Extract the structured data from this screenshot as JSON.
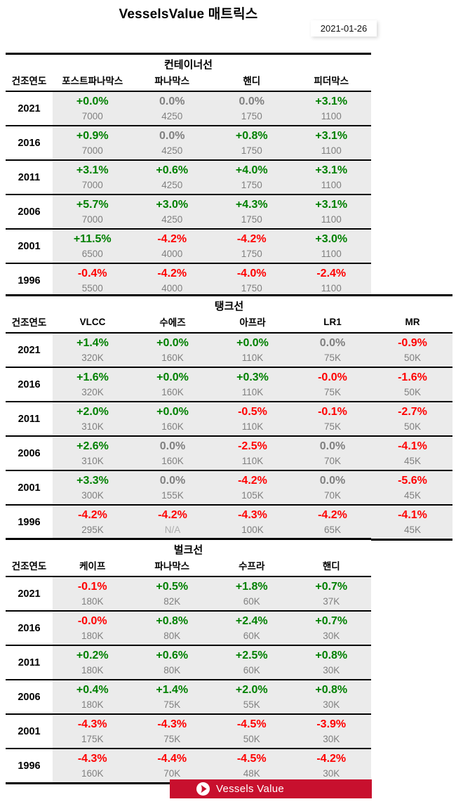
{
  "page": {
    "title": "VesselsValue 매트릭스",
    "date": "2021-01-26"
  },
  "colors": {
    "positive": "#008000",
    "negative": "#FF0000",
    "neutral": "#808080",
    "na": "#ADADAD",
    "cell_background": "#EBEBEB",
    "banner_red": "#C8102E"
  },
  "tables": [
    {
      "title": "컨테이너선",
      "year_header": "건조연도",
      "columns": [
        "포스트파나막스",
        "파나막스",
        "핸디",
        "피더막스"
      ],
      "rows": [
        {
          "year": "2021",
          "cells": [
            {
              "pct": "+0.0%",
              "value": "7000",
              "dir": "up"
            },
            {
              "pct": "0.0%",
              "value": "4250",
              "dir": "flat"
            },
            {
              "pct": "0.0%",
              "value": "1750",
              "dir": "flat"
            },
            {
              "pct": "+3.1%",
              "value": "1100",
              "dir": "up"
            }
          ]
        },
        {
          "year": "2016",
          "cells": [
            {
              "pct": "+0.9%",
              "value": "7000",
              "dir": "up"
            },
            {
              "pct": "0.0%",
              "value": "4250",
              "dir": "flat"
            },
            {
              "pct": "+0.8%",
              "value": "1750",
              "dir": "up"
            },
            {
              "pct": "+3.1%",
              "value": "1100",
              "dir": "up"
            }
          ]
        },
        {
          "year": "2011",
          "cells": [
            {
              "pct": "+3.1%",
              "value": "7000",
              "dir": "up"
            },
            {
              "pct": "+0.6%",
              "value": "4250",
              "dir": "up"
            },
            {
              "pct": "+4.0%",
              "value": "1750",
              "dir": "up"
            },
            {
              "pct": "+3.1%",
              "value": "1100",
              "dir": "up"
            }
          ]
        },
        {
          "year": "2006",
          "cells": [
            {
              "pct": "+5.7%",
              "value": "7000",
              "dir": "up"
            },
            {
              "pct": "+3.0%",
              "value": "4250",
              "dir": "up"
            },
            {
              "pct": "+4.3%",
              "value": "1750",
              "dir": "up"
            },
            {
              "pct": "+3.1%",
              "value": "1100",
              "dir": "up"
            }
          ]
        },
        {
          "year": "2001",
          "cells": [
            {
              "pct": "+11.5%",
              "value": "6500",
              "dir": "up"
            },
            {
              "pct": "-4.2%",
              "value": "4000",
              "dir": "down"
            },
            {
              "pct": "-4.2%",
              "value": "1750",
              "dir": "down"
            },
            {
              "pct": "+3.0%",
              "value": "1100",
              "dir": "up"
            }
          ]
        },
        {
          "year": "1996",
          "cells": [
            {
              "pct": "-0.4%",
              "value": "5500",
              "dir": "down"
            },
            {
              "pct": "-4.2%",
              "value": "4000",
              "dir": "down"
            },
            {
              "pct": "-4.0%",
              "value": "1750",
              "dir": "down"
            },
            {
              "pct": "-2.4%",
              "value": "1100",
              "dir": "down"
            }
          ]
        }
      ]
    },
    {
      "title": "탱크선",
      "year_header": "건조연도",
      "columns": [
        "VLCC",
        "수에즈",
        "아프라",
        "LR1",
        "MR"
      ],
      "rows": [
        {
          "year": "2021",
          "cells": [
            {
              "pct": "+1.4%",
              "value": "320K",
              "dir": "up"
            },
            {
              "pct": "+0.0%",
              "value": "160K",
              "dir": "up"
            },
            {
              "pct": "+0.0%",
              "value": "110K",
              "dir": "up"
            },
            {
              "pct": "0.0%",
              "value": "75K",
              "dir": "flat"
            },
            {
              "pct": "-0.9%",
              "value": "50K",
              "dir": "down"
            }
          ]
        },
        {
          "year": "2016",
          "cells": [
            {
              "pct": "+1.6%",
              "value": "320K",
              "dir": "up"
            },
            {
              "pct": "+0.0%",
              "value": "160K",
              "dir": "up"
            },
            {
              "pct": "+0.3%",
              "value": "110K",
              "dir": "up"
            },
            {
              "pct": "-0.0%",
              "value": "75K",
              "dir": "down"
            },
            {
              "pct": "-1.6%",
              "value": "50K",
              "dir": "down"
            }
          ]
        },
        {
          "year": "2011",
          "cells": [
            {
              "pct": "+2.0%",
              "value": "310K",
              "dir": "up"
            },
            {
              "pct": "+0.0%",
              "value": "160K",
              "dir": "up"
            },
            {
              "pct": "-0.5%",
              "value": "110K",
              "dir": "down"
            },
            {
              "pct": "-0.1%",
              "value": "75K",
              "dir": "down"
            },
            {
              "pct": "-2.7%",
              "value": "50K",
              "dir": "down"
            }
          ]
        },
        {
          "year": "2006",
          "cells": [
            {
              "pct": "+2.6%",
              "value": "310K",
              "dir": "up"
            },
            {
              "pct": "0.0%",
              "value": "160K",
              "dir": "flat"
            },
            {
              "pct": "-2.5%",
              "value": "110K",
              "dir": "down"
            },
            {
              "pct": "0.0%",
              "value": "70K",
              "dir": "flat"
            },
            {
              "pct": "-4.1%",
              "value": "45K",
              "dir": "down"
            }
          ]
        },
        {
          "year": "2001",
          "cells": [
            {
              "pct": "+3.3%",
              "value": "300K",
              "dir": "up"
            },
            {
              "pct": "0.0%",
              "value": "155K",
              "dir": "flat"
            },
            {
              "pct": "-4.2%",
              "value": "105K",
              "dir": "down"
            },
            {
              "pct": "0.0%",
              "value": "70K",
              "dir": "flat"
            },
            {
              "pct": "-5.6%",
              "value": "45K",
              "dir": "down"
            }
          ]
        },
        {
          "year": "1996",
          "cells": [
            {
              "pct": "-4.2%",
              "value": "295K",
              "dir": "down"
            },
            {
              "pct": "-4.2%",
              "value": "N/A",
              "dir": "down",
              "value_na": true
            },
            {
              "pct": "-4.3%",
              "value": "100K",
              "dir": "down"
            },
            {
              "pct": "-4.2%",
              "value": "65K",
              "dir": "down"
            },
            {
              "pct": "-4.1%",
              "value": "45K",
              "dir": "down"
            }
          ]
        }
      ]
    },
    {
      "title": "벌크선",
      "year_header": "건조연도",
      "columns": [
        "케이프",
        "파나막스",
        "수프라",
        "핸디"
      ],
      "rows": [
        {
          "year": "2021",
          "cells": [
            {
              "pct": "-0.1%",
              "value": "180K",
              "dir": "down"
            },
            {
              "pct": "+0.5%",
              "value": "82K",
              "dir": "up"
            },
            {
              "pct": "+1.8%",
              "value": "60K",
              "dir": "up"
            },
            {
              "pct": "+0.7%",
              "value": "37K",
              "dir": "up"
            }
          ]
        },
        {
          "year": "2016",
          "cells": [
            {
              "pct": "-0.0%",
              "value": "180K",
              "dir": "down"
            },
            {
              "pct": "+0.8%",
              "value": "80K",
              "dir": "up"
            },
            {
              "pct": "+2.4%",
              "value": "60K",
              "dir": "up"
            },
            {
              "pct": "+0.7%",
              "value": "30K",
              "dir": "up"
            }
          ]
        },
        {
          "year": "2011",
          "cells": [
            {
              "pct": "+0.2%",
              "value": "180K",
              "dir": "up"
            },
            {
              "pct": "+0.6%",
              "value": "80K",
              "dir": "up"
            },
            {
              "pct": "+2.5%",
              "value": "60K",
              "dir": "up"
            },
            {
              "pct": "+0.8%",
              "value": "30K",
              "dir": "up"
            }
          ]
        },
        {
          "year": "2006",
          "cells": [
            {
              "pct": "+0.4%",
              "value": "180K",
              "dir": "up"
            },
            {
              "pct": "+1.4%",
              "value": "75K",
              "dir": "up"
            },
            {
              "pct": "+2.0%",
              "value": "55K",
              "dir": "up"
            },
            {
              "pct": "+0.8%",
              "value": "30K",
              "dir": "up"
            }
          ]
        },
        {
          "year": "2001",
          "cells": [
            {
              "pct": "-4.3%",
              "value": "175K",
              "dir": "down"
            },
            {
              "pct": "-4.3%",
              "value": "75K",
              "dir": "down"
            },
            {
              "pct": "-4.5%",
              "value": "50K",
              "dir": "down"
            },
            {
              "pct": "-3.9%",
              "value": "30K",
              "dir": "down"
            }
          ]
        },
        {
          "year": "1996",
          "cells": [
            {
              "pct": "-4.3%",
              "value": "160K",
              "dir": "down"
            },
            {
              "pct": "-4.4%",
              "value": "70K",
              "dir": "down"
            },
            {
              "pct": "-4.5%",
              "value": "48K",
              "dir": "down"
            },
            {
              "pct": "-4.2%",
              "value": "30K",
              "dir": "down"
            }
          ]
        }
      ]
    }
  ],
  "footer": {
    "brand": "Vessels Value"
  }
}
